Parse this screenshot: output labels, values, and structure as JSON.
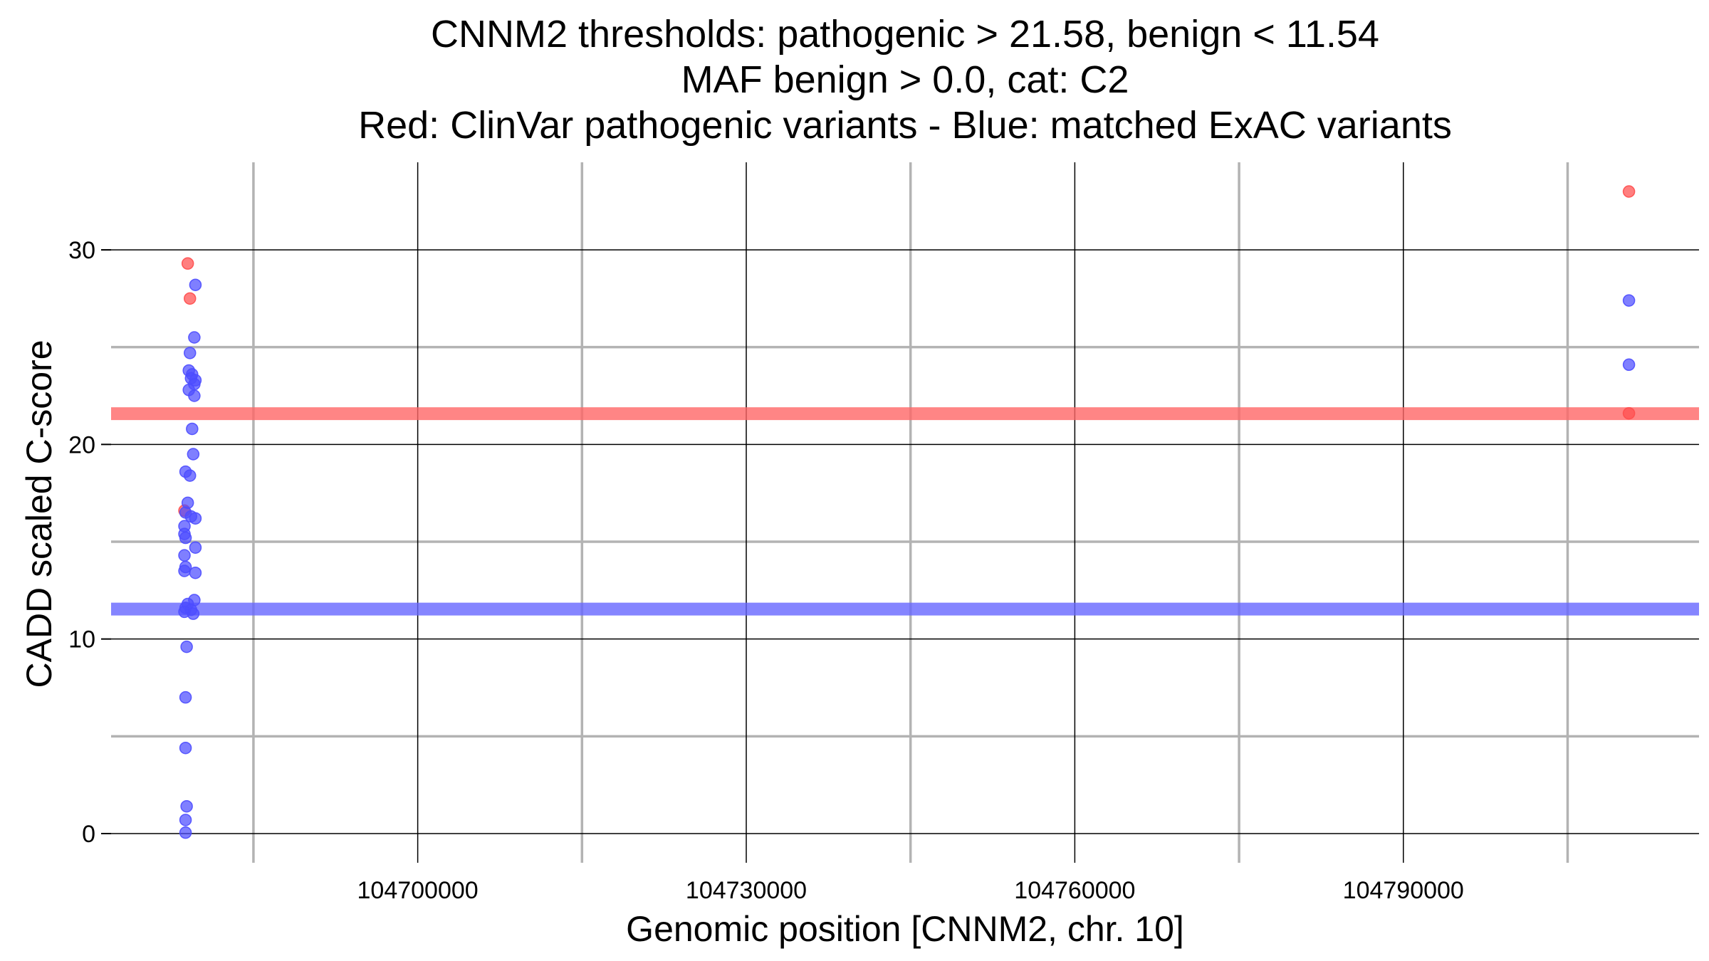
{
  "chart_data": {
    "type": "scatter",
    "title_lines": [
      "CNNM2 thresholds: pathogenic > 21.58, benign < 11.54",
      "MAF benign > 0.0, cat: C2",
      "Red: ClinVar pathogenic variants - Blue: matched ExAC variants"
    ],
    "xlabel": "Genomic position [CNNM2, chr. 10]",
    "ylabel": "CADD scaled C-score",
    "xlim": [
      104672000,
      104817000
    ],
    "ylim": [
      -1.5,
      34.5
    ],
    "x_ticks": [
      104700000,
      104730000,
      104760000,
      104790000
    ],
    "x_tick_labels": [
      "104700000",
      "104730000",
      "104760000",
      "104790000"
    ],
    "x_minor_gridlines": [
      104685000,
      104715000,
      104745000,
      104775000,
      104805000
    ],
    "y_ticks": [
      0,
      10,
      20,
      30
    ],
    "y_tick_labels": [
      "0",
      "10",
      "20",
      "30"
    ],
    "y_minor_gridlines": [
      5,
      15,
      25
    ],
    "grid": true,
    "threshold_lines": [
      {
        "y": 21.58,
        "color": "#ff6666"
      },
      {
        "y": 11.54,
        "color": "#6666ff"
      }
    ],
    "series": [
      {
        "color": "#ff4d4d",
        "points": [
          {
            "x": 104679000,
            "y": 29.3
          },
          {
            "x": 104679200,
            "y": 27.5
          },
          {
            "x": 104678700,
            "y": 16.6
          },
          {
            "x": 104810600,
            "y": 33.0
          },
          {
            "x": 104810600,
            "y": 21.6
          }
        ]
      },
      {
        "color": "#4d4dff",
        "points": [
          {
            "x": 104679700,
            "y": 28.2
          },
          {
            "x": 104679600,
            "y": 25.5
          },
          {
            "x": 104679200,
            "y": 24.7
          },
          {
            "x": 104679100,
            "y": 23.8
          },
          {
            "x": 104679400,
            "y": 23.6
          },
          {
            "x": 104679300,
            "y": 23.4
          },
          {
            "x": 104679700,
            "y": 23.3
          },
          {
            "x": 104679600,
            "y": 23.1
          },
          {
            "x": 104679100,
            "y": 22.8
          },
          {
            "x": 104679600,
            "y": 22.5
          },
          {
            "x": 104679400,
            "y": 20.8
          },
          {
            "x": 104679500,
            "y": 19.5
          },
          {
            "x": 104678800,
            "y": 18.6
          },
          {
            "x": 104679200,
            "y": 18.4
          },
          {
            "x": 104679000,
            "y": 17.0
          },
          {
            "x": 104678800,
            "y": 16.5
          },
          {
            "x": 104679300,
            "y": 16.3
          },
          {
            "x": 104679700,
            "y": 16.2
          },
          {
            "x": 104678700,
            "y": 15.8
          },
          {
            "x": 104678700,
            "y": 15.4
          },
          {
            "x": 104678800,
            "y": 15.2
          },
          {
            "x": 104679700,
            "y": 14.7
          },
          {
            "x": 104678700,
            "y": 14.3
          },
          {
            "x": 104678800,
            "y": 13.7
          },
          {
            "x": 104678700,
            "y": 13.5
          },
          {
            "x": 104679700,
            "y": 13.4
          },
          {
            "x": 104679600,
            "y": 12.0
          },
          {
            "x": 104679000,
            "y": 11.8
          },
          {
            "x": 104678800,
            "y": 11.6
          },
          {
            "x": 104679300,
            "y": 11.5
          },
          {
            "x": 104678700,
            "y": 11.4
          },
          {
            "x": 104679500,
            "y": 11.3
          },
          {
            "x": 104678900,
            "y": 9.6
          },
          {
            "x": 104678800,
            "y": 7.0
          },
          {
            "x": 104678800,
            "y": 4.4
          },
          {
            "x": 104678900,
            "y": 1.4
          },
          {
            "x": 104678800,
            "y": 0.7
          },
          {
            "x": 104678800,
            "y": 0.05
          },
          {
            "x": 104810600,
            "y": 27.4
          },
          {
            "x": 104810600,
            "y": 24.1
          }
        ]
      }
    ]
  }
}
